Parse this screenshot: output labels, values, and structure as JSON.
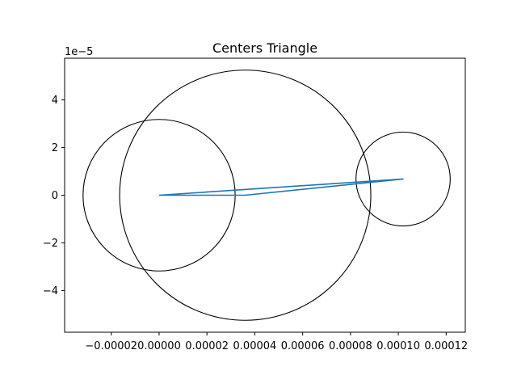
{
  "chart_data": {
    "type": "line",
    "title": "Centers Triangle",
    "xlabel": "",
    "ylabel": "",
    "y_offset_label": "1e−5",
    "xlim": [
      -3.95e-05,
      0.000128
    ],
    "ylim": [
      -5.75e-05,
      5.75e-05
    ],
    "x_ticks": [
      -2e-05,
      0.0,
      2e-05,
      4e-05,
      6e-05,
      8e-05,
      0.0001,
      0.00012
    ],
    "x_tick_labels": [
      "−0.00002",
      "0.00000",
      "0.00002",
      "0.00004",
      "0.00006",
      "0.00008",
      "0.00010",
      "0.00012"
    ],
    "y_ticks": [
      -4e-05,
      -2e-05,
      0.0,
      2e-05,
      4e-05
    ],
    "y_tick_labels": [
      "−4",
      "−2",
      "0",
      "2",
      "4"
    ],
    "grid": false,
    "series": [
      {
        "color": "#1f77b4",
        "x": [
          0.0,
          3.6e-05,
          0.000102,
          0.0
        ],
        "y": [
          0.0,
          0.0,
          6.8e-06,
          0.0
        ]
      }
    ],
    "circles": [
      {
        "cx": 0.0,
        "cy": 0.0,
        "r": 3.18e-05,
        "color": "#000000"
      },
      {
        "cx": 3.6e-05,
        "cy": 0.0,
        "r": 5.25e-05,
        "color": "#000000"
      },
      {
        "cx": 0.000102,
        "cy": 6.8e-06,
        "r": 1.97e-05,
        "color": "#000000"
      }
    ]
  }
}
